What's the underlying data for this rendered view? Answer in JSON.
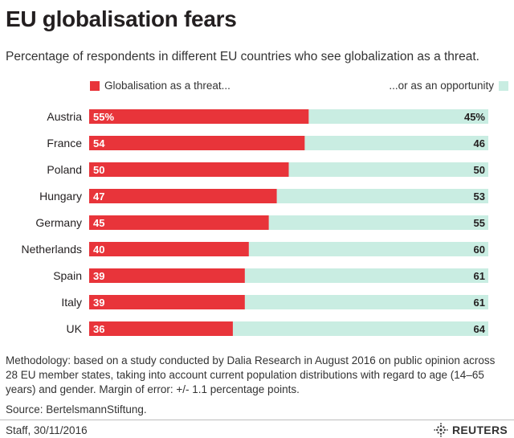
{
  "header": {
    "title": "EU globalisation fears",
    "subtitle": "Percentage of respondents in different EU countries who see globalization as a threat."
  },
  "legend": {
    "threat_label": "Globalisation as a threat...",
    "opportunity_label": "...or as an opportunity"
  },
  "colors": {
    "threat": "#e8343a",
    "opportunity": "#c9ede2",
    "text": "#231f20"
  },
  "chart_data": {
    "type": "bar",
    "orientation": "horizontal",
    "stacked": true,
    "title": "EU globalisation fears",
    "categories": [
      "Austria",
      "France",
      "Poland",
      "Hungary",
      "Germany",
      "Netherlands",
      "Spain",
      "Italy",
      "UK"
    ],
    "series": [
      {
        "name": "Globalisation as a threat...",
        "values": [
          55,
          54,
          50,
          47,
          45,
          40,
          39,
          39,
          36
        ],
        "labels": [
          "55%",
          "54",
          "50",
          "47",
          "45",
          "40",
          "39",
          "39",
          "36"
        ]
      },
      {
        "name": "...or as an opportunity",
        "values": [
          45,
          46,
          50,
          53,
          55,
          60,
          61,
          61,
          64
        ],
        "labels": [
          "45%",
          "46",
          "50",
          "53",
          "55",
          "60",
          "61",
          "61",
          "64"
        ]
      }
    ],
    "xlim": [
      0,
      100
    ],
    "xlabel": "",
    "ylabel": "",
    "legend_position": "top"
  },
  "notes": {
    "methodology": "Methodology: based on a study conducted by Dalia Research in August 2016 on public opinion across 28 EU member states, taking into account current population distributions with regard to age (14–65 years) and gender. Margin of error: +/- 1.1 percentage points.",
    "source": "Source: BertelsmannStiftung."
  },
  "footer": {
    "credit": "Staff, 30/11/2016",
    "brand": "REUTERS",
    "brand_icon": "reuters-logo-icon"
  }
}
